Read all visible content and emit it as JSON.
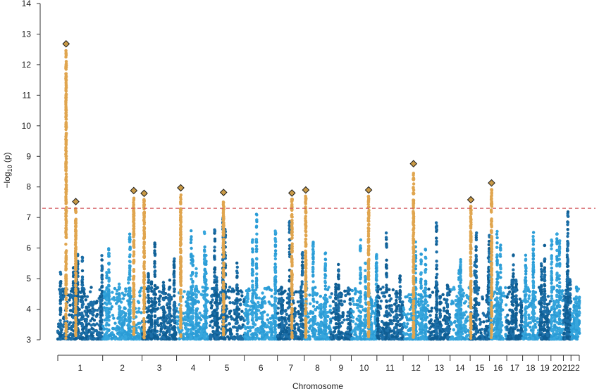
{
  "chart_data": {
    "type": "scatter",
    "subtype": "manhattan",
    "xlabel": "Chromosome",
    "ylabel": "-log10(p)",
    "ylabel_parts": {
      "prefix": "−log",
      "sub": "10",
      "suffix": " (p)"
    },
    "ylim": [
      3,
      14
    ],
    "yticks": [
      "3",
      "4",
      "5",
      "6",
      "7",
      "8",
      "9",
      "10",
      "11",
      "12",
      "13",
      "14"
    ],
    "grid": false,
    "legend": "none",
    "significance_threshold": 7.3,
    "chromosomes": [
      {
        "label": "1",
        "start": 0,
        "end": 65,
        "ceiling": 5.9
      },
      {
        "label": "2",
        "start": 65,
        "end": 122,
        "ceiling": 6.5
      },
      {
        "label": "3",
        "start": 122,
        "end": 172,
        "ceiling": 6.4
      },
      {
        "label": "4",
        "start": 172,
        "end": 220,
        "ceiling": 6.6
      },
      {
        "label": "5",
        "start": 220,
        "end": 270,
        "ceiling": 7.0
      },
      {
        "label": "6",
        "start": 270,
        "end": 318,
        "ceiling": 7.2
      },
      {
        "label": "7",
        "start": 318,
        "end": 357,
        "ceiling": 6.9
      },
      {
        "label": "8",
        "start": 357,
        "end": 395,
        "ceiling": 6.2
      },
      {
        "label": "9",
        "start": 395,
        "end": 425,
        "ceiling": 5.6
      },
      {
        "label": "10",
        "start": 425,
        "end": 462,
        "ceiling": 6.3
      },
      {
        "label": "11",
        "start": 462,
        "end": 500,
        "ceiling": 6.7
      },
      {
        "label": "12",
        "start": 500,
        "end": 537,
        "ceiling": 6.4
      },
      {
        "label": "13",
        "start": 537,
        "end": 568,
        "ceiling": 6.9
      },
      {
        "label": "14",
        "start": 568,
        "end": 597,
        "ceiling": 5.9
      },
      {
        "label": "15",
        "start": 597,
        "end": 625,
        "ceiling": 6.5
      },
      {
        "label": "16",
        "start": 625,
        "end": 650,
        "ceiling": 6.6
      },
      {
        "label": "17",
        "start": 650,
        "end": 673,
        "ceiling": 5.8
      },
      {
        "label": "18",
        "start": 673,
        "end": 696,
        "ceiling": 6.8
      },
      {
        "label": "19",
        "start": 696,
        "end": 714,
        "ceiling": 6.1
      },
      {
        "label": "20",
        "start": 714,
        "end": 732,
        "ceiling": 6.5
      },
      {
        "label": "21",
        "start": 732,
        "end": 743,
        "ceiling": 7.2
      },
      {
        "label": "22",
        "start": 743,
        "end": 755,
        "ceiling": 4.8
      }
    ],
    "lead_snps": [
      {
        "chromosome": "1",
        "pos": 12,
        "p": 12.68
      },
      {
        "chromosome": "1",
        "pos": 26,
        "p": 7.52
      },
      {
        "chromosome": "2",
        "pos": 110,
        "p": 7.88
      },
      {
        "chromosome": "3",
        "pos": 125,
        "p": 7.79
      },
      {
        "chromosome": "4",
        "pos": 178,
        "p": 7.97
      },
      {
        "chromosome": "5",
        "pos": 240,
        "p": 7.82
      },
      {
        "chromosome": "7",
        "pos": 339,
        "p": 7.8
      },
      {
        "chromosome": "8",
        "pos": 359,
        "p": 7.9
      },
      {
        "chromosome": "10",
        "pos": 450,
        "p": 7.9
      },
      {
        "chromosome": "12",
        "pos": 515,
        "p": 8.76
      },
      {
        "chromosome": "15",
        "pos": 598,
        "p": 7.58
      },
      {
        "chromosome": "16",
        "pos": 628,
        "p": 8.13
      }
    ],
    "colors": {
      "chromosome_palette": [
        "#1c6fa8",
        "#2b9cd6",
        "#0f5e94",
        "#37a6dd"
      ],
      "highlight": "#e0a54e",
      "lead_marker": "#c99a46",
      "threshold_line": "#d2555a",
      "axis": "#333333"
    }
  }
}
